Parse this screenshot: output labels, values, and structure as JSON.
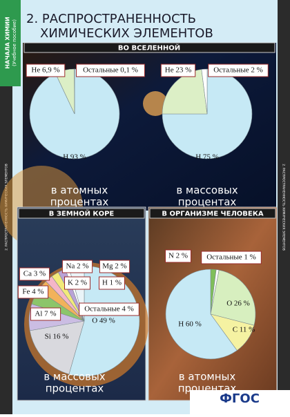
{
  "title": [
    "2. РАСПРОСТРАНЕННОСТЬ",
    "ХИМИЧЕСКИХ ЭЛЕМЕНТОВ"
  ],
  "series_label": [
    "НАЧАЛА ХИМИИ",
    "(Учебное пособие)"
  ],
  "side_text": "2. РАСПРОСТРАНЕННОСТЬ ХИМИЧЕСКИХ ЭЛЕМЕНТОВ",
  "universe_header": "ВО ВСЕЛЕННОЙ",
  "logo": "ФГОС",
  "chart_data": [
    {
      "type": "pie",
      "caption": [
        "в атомных",
        "процентах"
      ],
      "values": [
        93,
        6.9,
        0.1
      ],
      "value_labels": [
        "H 93 %",
        "He 6,9 %",
        "Остальные 0,1 %"
      ],
      "colors": [
        "#c6e9f5",
        "#dcefc6",
        "#ffffff"
      ]
    },
    {
      "type": "pie",
      "caption": [
        "в массовых",
        "процентах"
      ],
      "values": [
        75,
        23,
        2
      ],
      "value_labels": [
        "H 75 %",
        "He 23 %",
        "Остальные 2 %"
      ],
      "colors": [
        "#c6e9f5",
        "#dcefc6",
        "#ffffff"
      ]
    },
    {
      "type": "pie",
      "title": "В ЗЕМНОЙ КОРЕ",
      "caption": [
        "в массовых",
        "процентах"
      ],
      "values": [
        49,
        16,
        7,
        4,
        3,
        2,
        2,
        2,
        1,
        4
      ],
      "value_labels": [
        "O 49 %",
        "Si 16 %",
        "Al 7 %",
        "Fe 4 %",
        "Ca 3 %",
        "Na 2 %",
        "K 2 %",
        "Mg 2 %",
        "H 1 %",
        "Остальные 4 %"
      ],
      "colors": [
        "#c6e9f5",
        "#d9d9de",
        "#cbbde3",
        "#8cc56a",
        "#f2b25a",
        "#f4b6c8",
        "#f2ea7a",
        "#b9a3d6",
        "#ffffff",
        "#eaf4f8"
      ]
    },
    {
      "type": "pie",
      "title": "В ОРГАНИЗМЕ ЧЕЛОВЕКА",
      "caption": [
        "в атомных",
        "процентах"
      ],
      "values": [
        2,
        1,
        26,
        11,
        60
      ],
      "value_labels": [
        "N 2 %",
        "Остальные 1 %",
        "O 26 %",
        "C 11 %",
        "H 60 %"
      ],
      "colors": [
        "#7fbf5a",
        "#ffffff",
        "#d7efbf",
        "#f5f2a2",
        "#c6e9f5"
      ]
    }
  ]
}
